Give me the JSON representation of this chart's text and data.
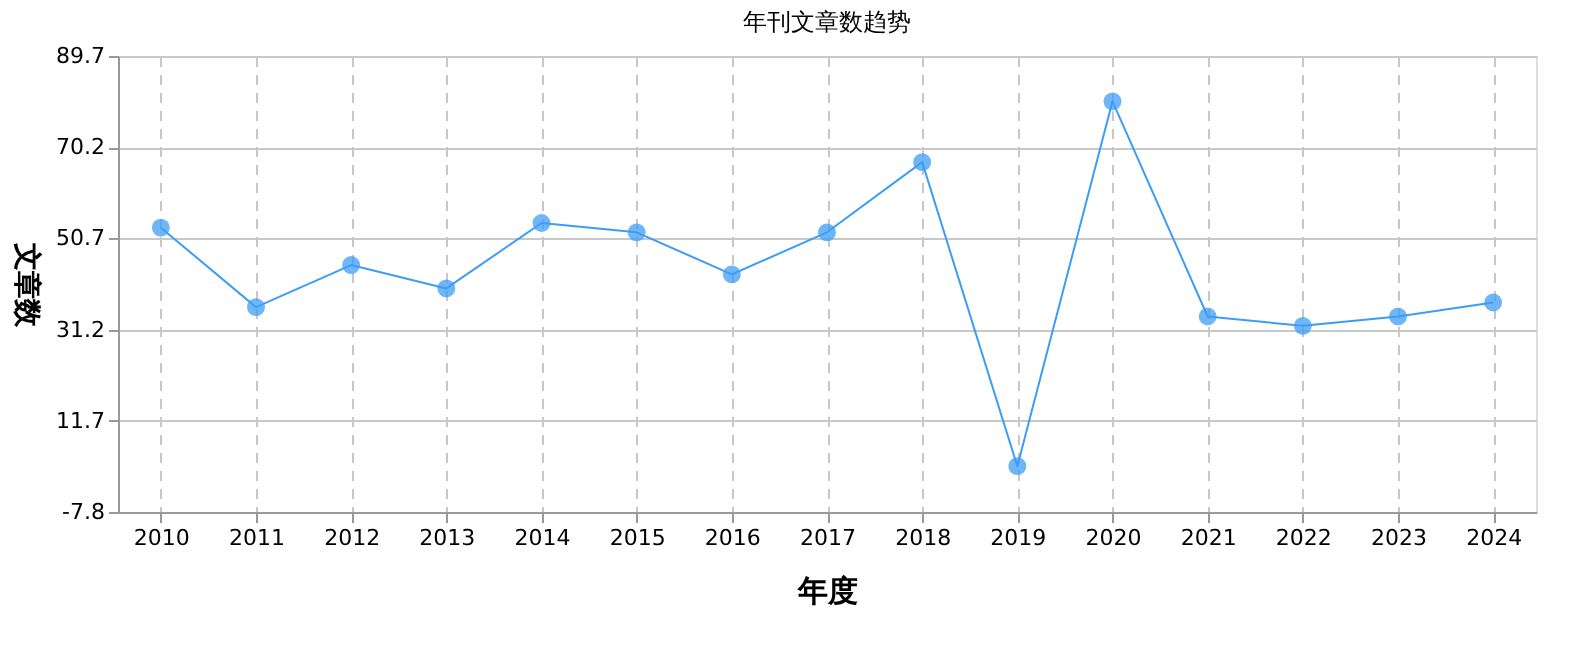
{
  "chart_data": {
    "type": "line",
    "title": "年刊文章数趋势",
    "xlabel": "年度",
    "ylabel": "文章数",
    "categories": [
      "2010",
      "2011",
      "2012",
      "2013",
      "2014",
      "2015",
      "2016",
      "2017",
      "2018",
      "2019",
      "2020",
      "2021",
      "2022",
      "2023",
      "2024"
    ],
    "series": [
      {
        "color": "#3d9df5",
        "values": [
          53,
          36,
          45,
          40,
          54,
          52,
          43,
          52,
          67,
          2,
          80,
          34,
          32,
          34,
          37
        ]
      }
    ],
    "ylim": [
      -7.8,
      89.7
    ],
    "yticks": [
      -7.8,
      11.7,
      31.2,
      50.7,
      70.2,
      89.7
    ],
    "grid": true,
    "marker": "circle",
    "line_style": "solid"
  }
}
